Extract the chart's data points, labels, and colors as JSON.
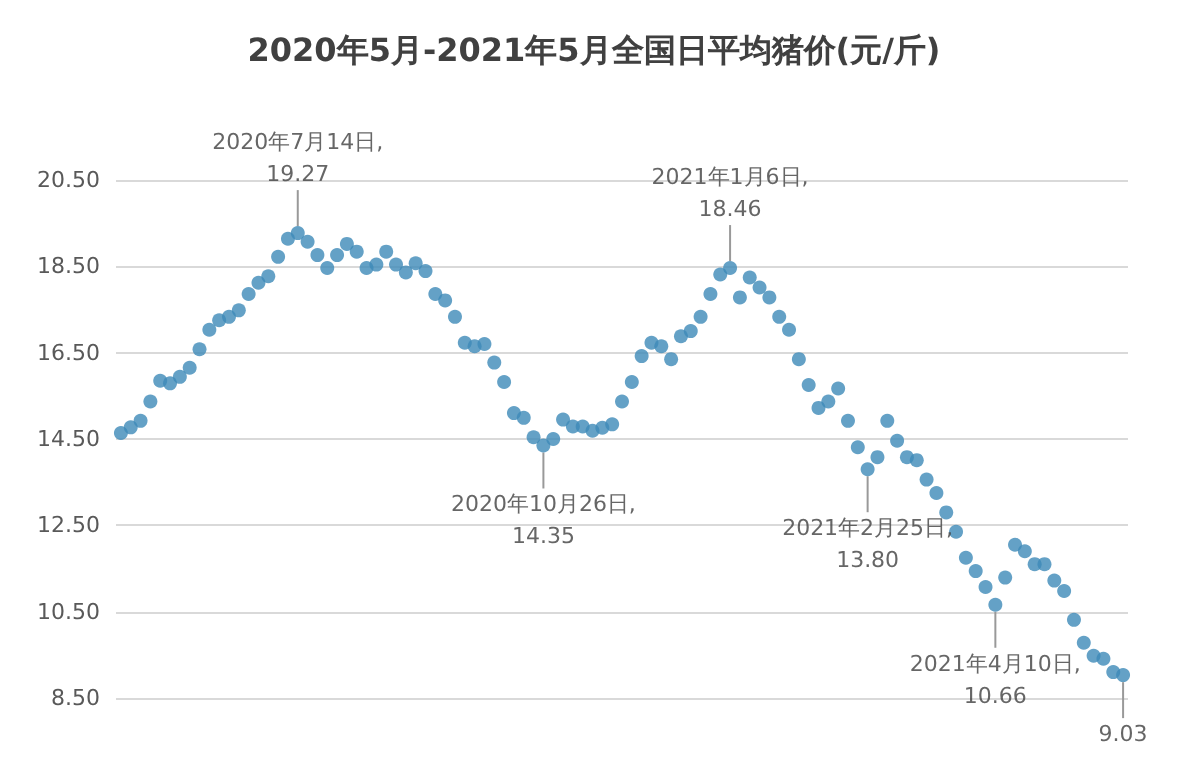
{
  "chart_data": {
    "type": "scatter",
    "title": "2020年5月-2021年5月全国日平均猪价(元/斤)",
    "categories": [
      null,
      null,
      null,
      null,
      null,
      null,
      null,
      null,
      null,
      null,
      null,
      null,
      null,
      null,
      null,
      null,
      null,
      null,
      null,
      null,
      null,
      null,
      null,
      null,
      null,
      null,
      null,
      null,
      null,
      null,
      null,
      null,
      null,
      null,
      null,
      null,
      null,
      null,
      null,
      null,
      null,
      null,
      null,
      null,
      null,
      null,
      null,
      null,
      null,
      null,
      null,
      null,
      null,
      null,
      null,
      null,
      null,
      null,
      null,
      null,
      null,
      null,
      null,
      null,
      null,
      null,
      null,
      null,
      null,
      null,
      null,
      null,
      null,
      null,
      null,
      null,
      null,
      null,
      null,
      null,
      null,
      null,
      null,
      null,
      null,
      null,
      null,
      null,
      null,
      null,
      null,
      null,
      null,
      null,
      null,
      null,
      null,
      null,
      null,
      null,
      null,
      null,
      null
    ],
    "series": [
      {
        "color": "#3d89b8",
        "values": [
          14.64,
          14.77,
          14.92,
          15.37,
          15.85,
          15.79,
          15.94,
          16.15,
          16.58,
          17.03,
          17.25,
          17.33,
          17.48,
          17.86,
          18.12,
          18.27,
          18.72,
          19.14,
          19.27,
          19.07,
          18.76,
          18.46,
          18.76,
          19.02,
          18.84,
          18.46,
          18.54,
          18.84,
          18.54,
          18.36,
          18.57,
          18.39,
          17.86,
          17.71,
          17.33,
          16.73,
          16.65,
          16.7,
          16.27,
          15.82,
          15.1,
          14.99,
          14.54,
          14.35,
          14.5,
          14.95,
          14.79,
          14.79,
          14.69,
          14.76,
          14.84,
          15.37,
          15.82,
          16.42,
          16.73,
          16.65,
          16.35,
          16.88,
          17.0,
          17.33,
          17.86,
          18.31,
          18.46,
          17.78,
          18.24,
          18.01,
          17.78,
          17.33,
          17.03,
          16.35,
          15.75,
          15.22,
          15.37,
          15.67,
          14.92,
          14.31,
          13.8,
          14.08,
          14.92,
          14.46,
          14.08,
          14.01,
          13.56,
          13.25,
          12.8,
          12.35,
          11.75,
          11.44,
          11.07,
          10.66,
          11.29,
          12.05,
          11.9,
          11.6,
          11.6,
          11.22,
          10.98,
          10.31,
          9.78,
          9.48,
          9.41,
          9.1,
          9.03
        ]
      }
    ],
    "ylim": [
      8.5,
      20.5
    ],
    "yticks": [
      {
        "value": 8.5,
        "label": "8.50"
      },
      {
        "value": 10.5,
        "label": "10.50"
      },
      {
        "value": 12.5,
        "label": "12.50"
      },
      {
        "value": 14.5,
        "label": "14.50"
      },
      {
        "value": 16.5,
        "label": "16.50"
      },
      {
        "value": 18.5,
        "label": "18.50"
      },
      {
        "value": 20.5,
        "label": "20.50"
      }
    ],
    "grid": "y",
    "tick_labels": "y",
    "marker": "circle",
    "annotations": [
      {
        "text": "2020年7月14日,\n19.27",
        "y": 19.27
      },
      {
        "text": "2020年10月26日,\n14.35",
        "y": 14.35
      },
      {
        "text": "2021年1月6日,\n18.46",
        "y": 18.46
      },
      {
        "text": "2021年2月25日,\n13.80",
        "y": 13.8
      },
      {
        "text": "2021年4月10日,\n10.66",
        "y": 10.66
      },
      {
        "text": "9.03",
        "y": 9.03
      }
    ]
  }
}
